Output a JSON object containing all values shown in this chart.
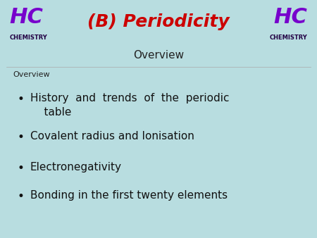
{
  "bg_color": "#b8dde0",
  "title": "(B) Periodicity",
  "title_color": "#cc0000",
  "subtitle": "Overview",
  "subtitle_color": "#222222",
  "hc_left_text": "HC",
  "hc_left_sub": "CHEMISTRY",
  "hc_right_text": "HC",
  "hc_right_sub": "CHEMISTRY",
  "hc_color": "#7700cc",
  "hc_sub_color": "#220044",
  "overview_label": "Overview",
  "overview_label_color": "#222222",
  "bullet_items": [
    "History  and  trends  of  the  periodic\n  table",
    "Covalent radius and Ionisation",
    "Electronegativity",
    "Bonding in the first twenty elements"
  ],
  "bullet_color": "#111111",
  "bullet_marker": "•"
}
